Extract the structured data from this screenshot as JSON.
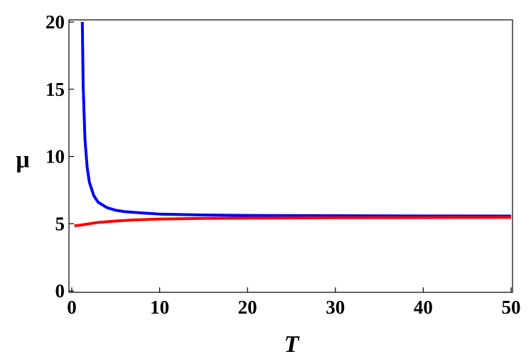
{
  "chart_data": {
    "type": "line",
    "x_label": "T",
    "y_label": "μ",
    "xlim": [
      -0.32,
      50.16
    ],
    "ylim": [
      -0.1,
      20.16
    ],
    "xticks": [
      0,
      10,
      20,
      30,
      40,
      50
    ],
    "yticks": [
      0,
      5,
      10,
      15,
      20
    ],
    "grid": false,
    "series": [
      {
        "name": "blue",
        "color": "#0000ff",
        "x": [
          1.2,
          1.3,
          1.5,
          1.75,
          2,
          2.5,
          3,
          4,
          5,
          6,
          8,
          10,
          15,
          20,
          30,
          40,
          50
        ],
        "values": [
          20,
          15.2,
          11.3,
          9.2,
          8.1,
          7.1,
          6.6,
          6.2,
          6.0,
          5.9,
          5.8,
          5.72,
          5.65,
          5.62,
          5.6,
          5.58,
          5.57
        ]
      },
      {
        "name": "red",
        "color": "#ff0000",
        "x": [
          0.3,
          1,
          2,
          3,
          4,
          5,
          7,
          10,
          15,
          20,
          30,
          40,
          50
        ],
        "values": [
          4.85,
          4.9,
          5.0,
          5.1,
          5.15,
          5.2,
          5.28,
          5.35,
          5.4,
          5.42,
          5.45,
          5.46,
          5.47
        ]
      }
    ]
  }
}
